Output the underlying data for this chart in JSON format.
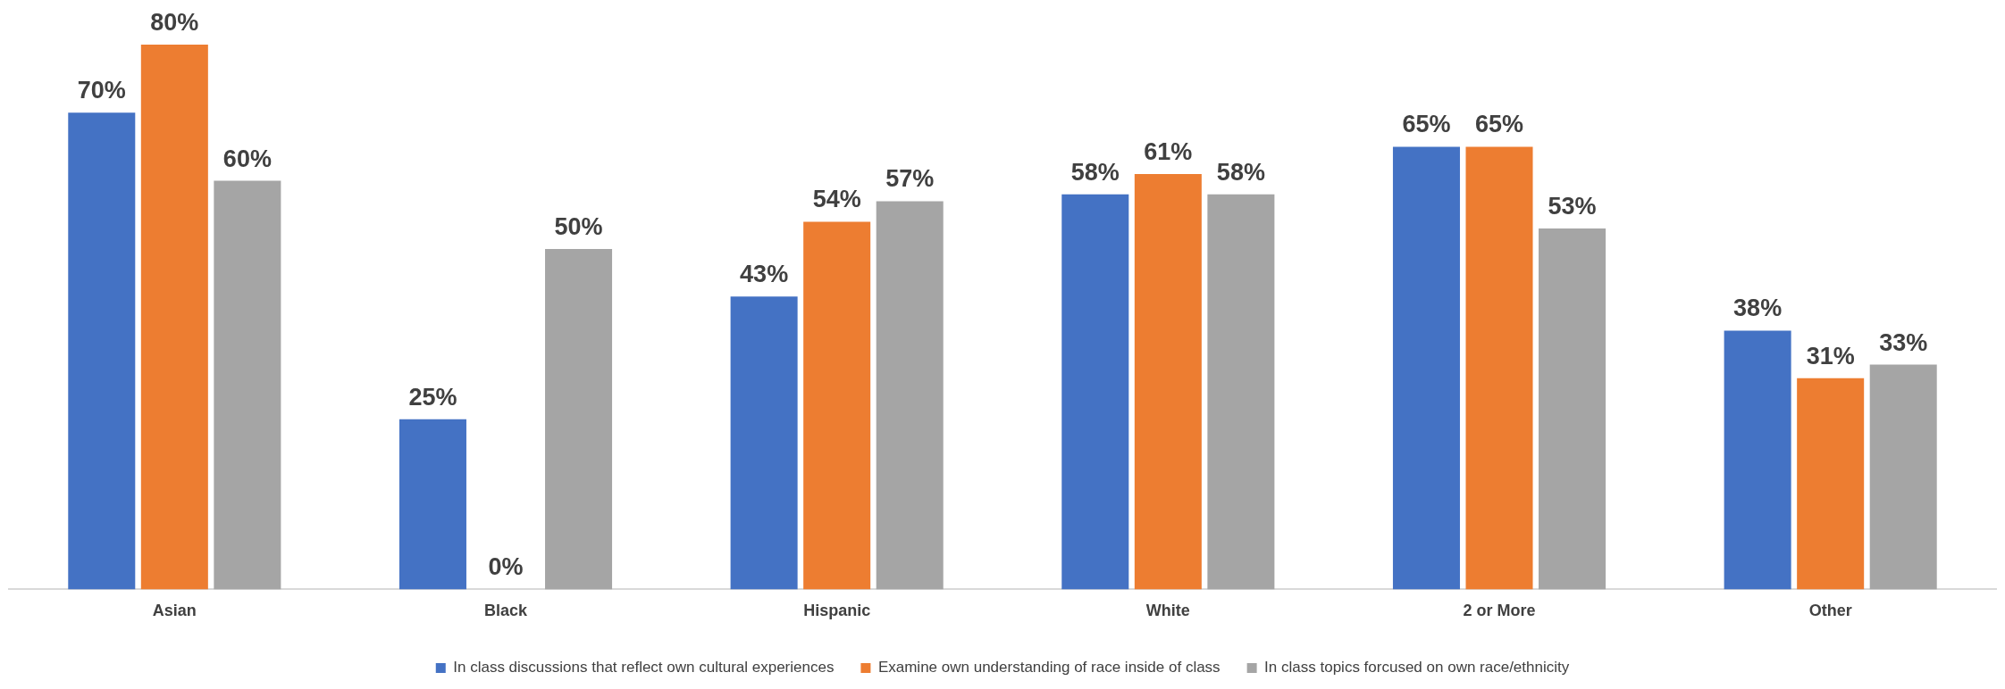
{
  "chart_data": {
    "type": "bar",
    "categories": [
      "Asian",
      "Black",
      "Hispanic",
      "White",
      "2 or More",
      "Other"
    ],
    "series": [
      {
        "name": "In class discussions that reflect own cultural experiences",
        "color": "#4472c4",
        "values": [
          70,
          25,
          43,
          58,
          65,
          38
        ],
        "value_labels": [
          "70%",
          "25%",
          "43%",
          "58%",
          "65%",
          "38%"
        ]
      },
      {
        "name": "Examine own understanding of race inside of class",
        "color": "#ed7d31",
        "values": [
          80,
          0,
          54,
          61,
          65,
          31
        ],
        "value_labels": [
          "80%",
          "0%",
          "54%",
          "61%",
          "65%",
          "31%"
        ]
      },
      {
        "name": "In class topics forcused on own race/ethnicity",
        "color": "#a5a5a5",
        "values": [
          60,
          50,
          57,
          58,
          53,
          33
        ],
        "value_labels": [
          "60%",
          "50%",
          "57%",
          "58%",
          "53%",
          "33%"
        ]
      }
    ],
    "legend": "bottom",
    "grid": false
  }
}
